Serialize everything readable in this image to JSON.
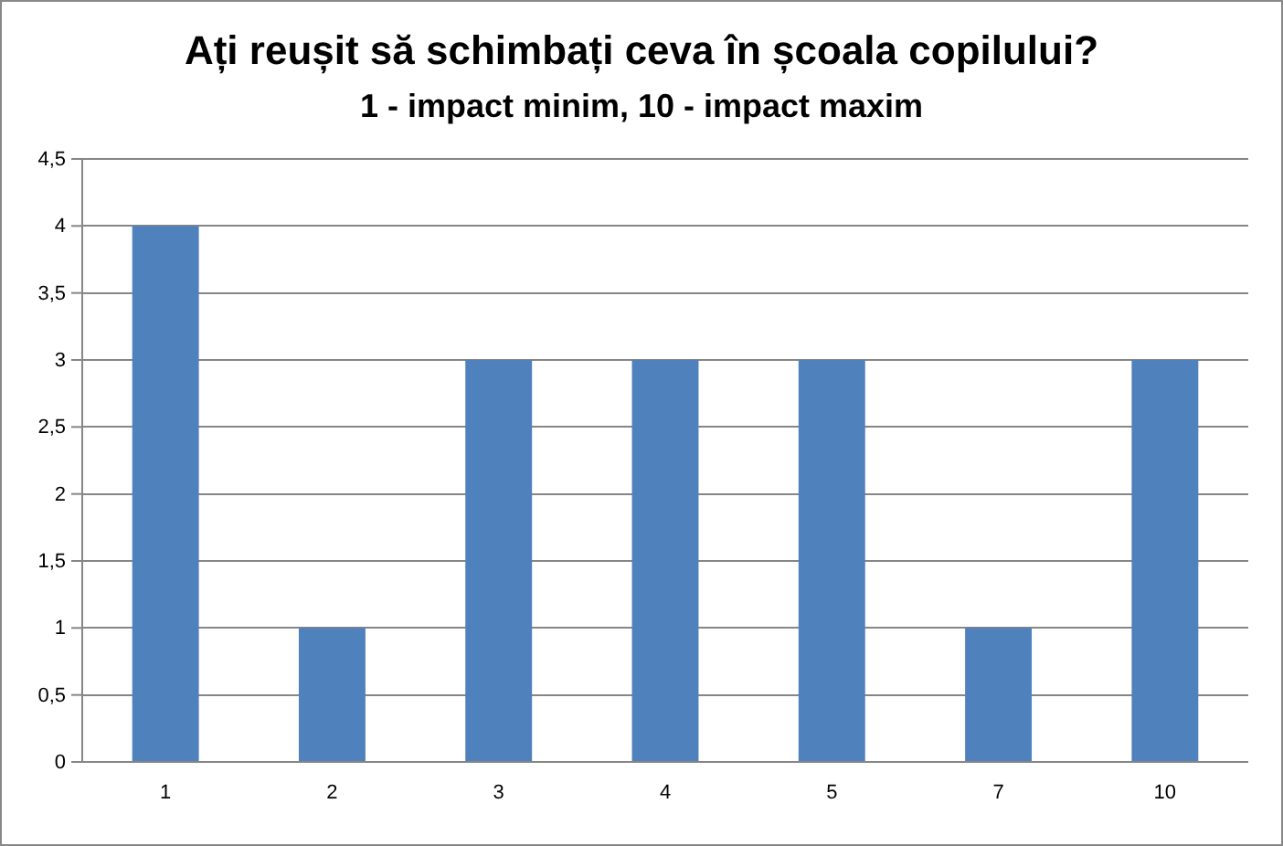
{
  "chart_data": {
    "type": "bar",
    "title": "Ați reușit să schimbați ceva în școala copilului?",
    "subtitle": "1 - impact minim, 10 - impact maxim",
    "categories": [
      "1",
      "2",
      "3",
      "4",
      "5",
      "7",
      "10"
    ],
    "values": [
      4,
      1,
      3,
      3,
      3,
      1,
      3
    ],
    "color": "#4f81bd",
    "ylim": [
      0,
      4.5
    ],
    "yticks": [
      0,
      {
        "value": 0.5,
        "label": "0,5"
      },
      1,
      {
        "value": 1.5,
        "label": "1,5"
      },
      2,
      {
        "value": 2.5,
        "label": "2,5"
      },
      3,
      {
        "value": 3.5,
        "label": "3,5"
      },
      4,
      {
        "value": 4.5,
        "label": "4,5"
      }
    ],
    "grid": "y"
  }
}
